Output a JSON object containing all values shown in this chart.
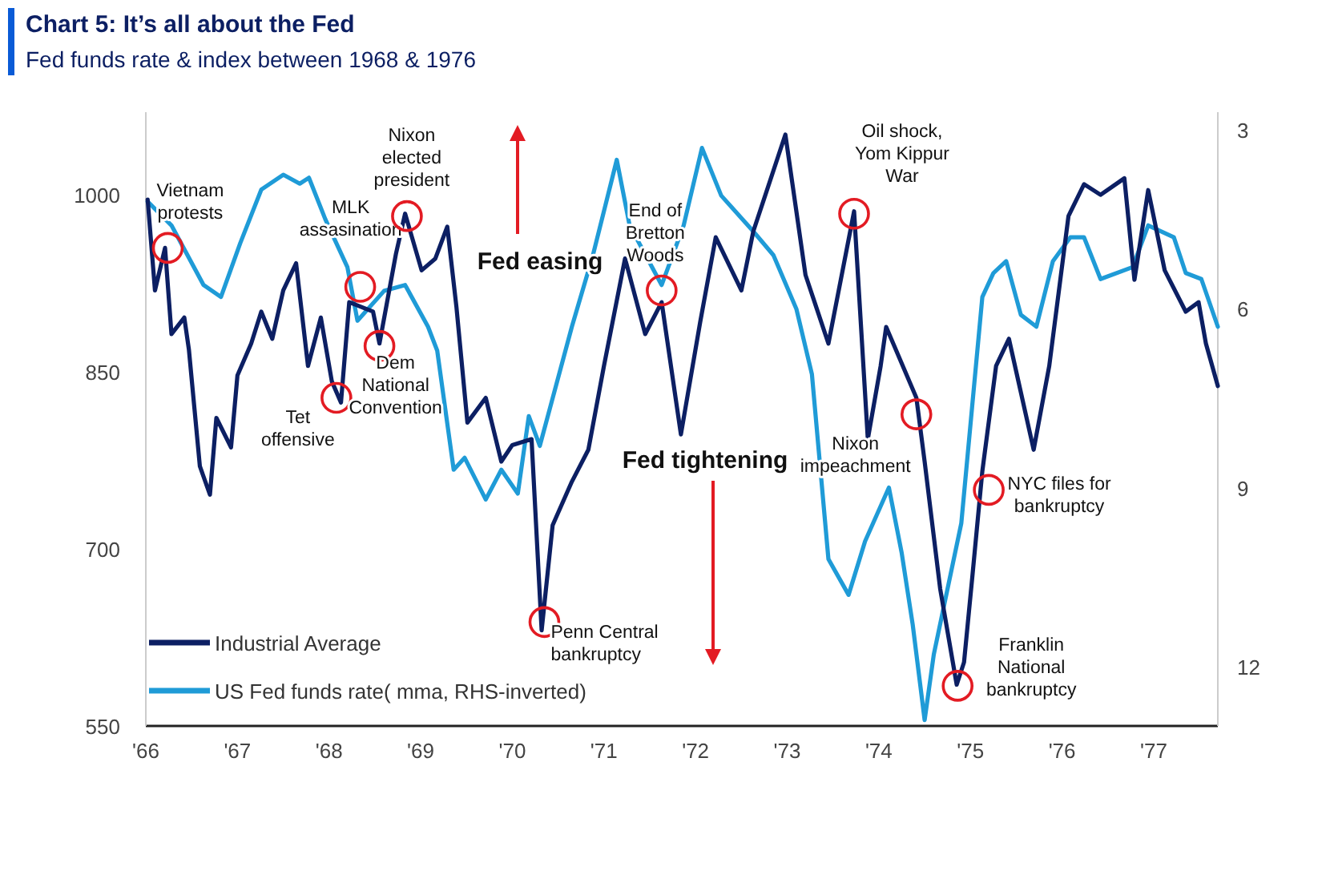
{
  "chart_data": {
    "type": "line",
    "title": "Chart 5: It’s all about the Fed",
    "subtitle": "Fed funds rate & index between 1968 & 1976",
    "xlim": [
      1966,
      1977.7
    ],
    "xticks": [
      {
        "value": 1966,
        "label": "'66"
      },
      {
        "value": 1967,
        "label": "'67"
      },
      {
        "value": 1968,
        "label": "'68"
      },
      {
        "value": 1969,
        "label": "'69"
      },
      {
        "value": 1970,
        "label": "'70"
      },
      {
        "value": 1971,
        "label": "'71"
      },
      {
        "value": 1972,
        "label": "'72"
      },
      {
        "value": 1973,
        "label": "'73"
      },
      {
        "value": 1974,
        "label": "'74"
      },
      {
        "value": 1975,
        "label": "'75"
      },
      {
        "value": 1976,
        "label": "'76"
      },
      {
        "value": 1977,
        "label": "'77"
      }
    ],
    "ylim": [
      550,
      1070
    ],
    "yticks": [
      550,
      700,
      850,
      1000
    ],
    "y2lim": [
      13,
      2.7
    ],
    "y2ticks": [
      3,
      6,
      9,
      12
    ],
    "grid": false,
    "legend": "bottom left",
    "marker": "none",
    "line_style": "solid",
    "series": [
      {
        "name": "Industrial Average",
        "color": "#0c1f63",
        "x": [
          1966.02,
          1966.1,
          1966.21,
          1966.28,
          1966.42,
          1966.47,
          1966.59,
          1966.7,
          1966.77,
          1966.93,
          1967.0,
          1967.15,
          1967.26,
          1967.38,
          1967.5,
          1967.64,
          1967.77,
          1967.91,
          1968.03,
          1968.13,
          1968.22,
          1968.48,
          1968.55,
          1968.73,
          1968.83,
          1969.01,
          1969.16,
          1969.29,
          1969.39,
          1969.51,
          1969.71,
          1969.88,
          1970.0,
          1970.21,
          1970.32,
          1970.44,
          1970.65,
          1970.83,
          1971.0,
          1971.23,
          1971.45,
          1971.63,
          1971.84,
          1972.05,
          1972.22,
          1972.5,
          1972.63,
          1972.98,
          1973.2,
          1973.45,
          1973.73,
          1973.88,
          1974.02,
          1974.08,
          1974.41,
          1974.5,
          1974.67,
          1974.85,
          1974.93,
          1975.02,
          1975.13,
          1975.28,
          1975.42,
          1975.69,
          1975.86,
          1976.07,
          1976.24,
          1976.42,
          1976.68,
          1976.79,
          1976.94,
          1977.12,
          1977.35,
          1977.49,
          1977.57,
          1977.7
        ],
        "values": [
          996,
          919,
          955,
          882,
          896,
          869,
          770,
          746,
          811,
          786,
          847,
          874,
          901,
          878,
          919,
          942,
          855,
          896,
          842,
          824,
          909,
          901,
          874,
          950,
          984,
          936,
          946,
          973,
          905,
          807,
          828,
          774,
          788,
          793,
          631,
          720,
          757,
          784,
          855,
          946,
          882,
          909,
          797,
          892,
          964,
          919,
          969,
          1051,
          932,
          874,
          986,
          793,
          855,
          888,
          828,
          774,
          666,
          585,
          604,
          676,
          766,
          855,
          878,
          784,
          855,
          982,
          1009,
          1000,
          1014,
          928,
          1004,
          936,
          901,
          909,
          874,
          838
        ]
      },
      {
        "name": "US Fed funds rate( mma, RHS-inverted)",
        "color": "#1f9bd7",
        "axis": "y2",
        "x": [
          1966.02,
          1966.28,
          1966.63,
          1966.82,
          1967.03,
          1967.26,
          1967.5,
          1967.68,
          1967.78,
          1967.96,
          1968.2,
          1968.31,
          1968.6,
          1968.83,
          1969.08,
          1969.18,
          1969.36,
          1969.48,
          1969.71,
          1969.88,
          1970.06,
          1970.18,
          1970.3,
          1970.65,
          1970.88,
          1971.14,
          1971.28,
          1971.63,
          1971.87,
          1972.07,
          1972.28,
          1972.63,
          1972.85,
          1973.1,
          1973.27,
          1973.45,
          1973.67,
          1973.85,
          1974.11,
          1974.25,
          1974.37,
          1974.5,
          1974.6,
          1974.9,
          1975.13,
          1975.25,
          1975.39,
          1975.55,
          1975.72,
          1975.9,
          1976.09,
          1976.24,
          1976.42,
          1976.77,
          1976.94,
          1977.22,
          1977.35,
          1977.52,
          1977.7
        ],
        "values": [
          4.2,
          4.6,
          5.6,
          5.8,
          4.9,
          4.0,
          3.75,
          3.9,
          3.8,
          4.5,
          5.3,
          6.2,
          5.7,
          5.6,
          6.3,
          6.7,
          8.7,
          8.5,
          9.2,
          8.7,
          9.1,
          7.8,
          8.3,
          6.3,
          5.1,
          3.5,
          4.6,
          5.6,
          4.6,
          3.3,
          4.1,
          4.7,
          5.1,
          6.0,
          7.1,
          10.2,
          10.8,
          9.9,
          9.0,
          10.1,
          11.3,
          12.9,
          11.8,
          9.6,
          5.8,
          5.4,
          5.2,
          6.1,
          6.3,
          5.2,
          4.8,
          4.8,
          5.5,
          5.3,
          4.6,
          4.8,
          5.4,
          5.5,
          6.3
        ]
      }
    ],
    "annotations": [
      {
        "text": "Vietnam protests",
        "x": 1966.24,
        "y": 955
      },
      {
        "text": "MLK assasination",
        "x": 1968.34,
        "y": 922
      },
      {
        "text": "Tet offensive",
        "x": 1968.08,
        "y": 828
      },
      {
        "text": "Dem National Convention",
        "x": 1968.55,
        "y": 872
      },
      {
        "text": "Nixon elected president",
        "x": 1968.85,
        "y": 982
      },
      {
        "text": "Penn Central bankruptcy",
        "x": 1970.35,
        "y": 638
      },
      {
        "text": "End of Bretton Woods",
        "x": 1971.63,
        "y": 919
      },
      {
        "text": "Oil shock, Yom Kippur War",
        "x": 1973.73,
        "y": 984
      },
      {
        "text": "Nixon impeachment",
        "x": 1974.41,
        "y": 814
      },
      {
        "text": "Franklin National bankruptcy",
        "x": 1974.86,
        "y": 584
      },
      {
        "text": "NYC files for bankruptcy",
        "x": 1975.2,
        "y": 750
      },
      "Fed easing",
      "Fed tightening"
    ]
  }
}
